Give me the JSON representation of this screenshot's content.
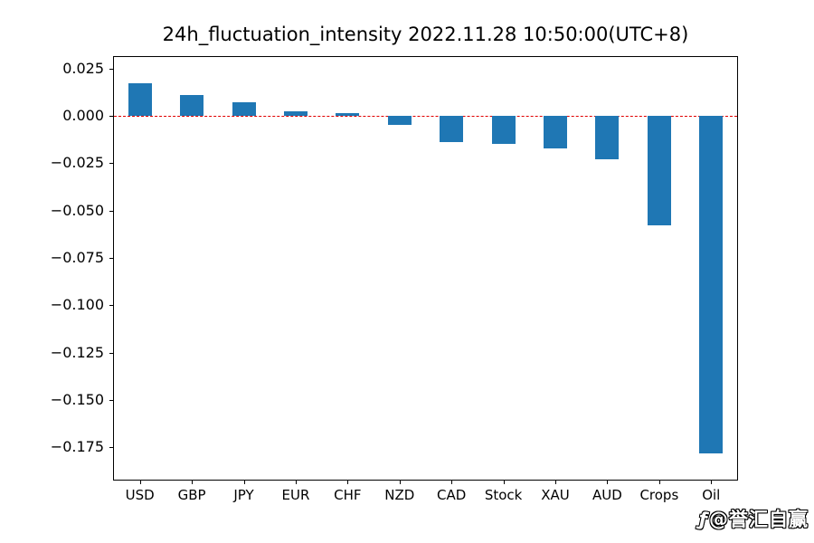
{
  "title": "24h_fluctuation_intensity 2022.11.28 10:50:00(UTC+8)",
  "watermark": {
    "logo": "ƒ",
    "text": "@誉汇自赢"
  },
  "colors": {
    "bar": "#1f77b4",
    "zero_line": "#e00000",
    "axis": "#000000",
    "background": "#ffffff"
  },
  "chart_data": {
    "type": "bar",
    "title": "24h_fluctuation_intensity 2022.11.28 10:50:00(UTC+8)",
    "categories": [
      "USD",
      "GBP",
      "JPY",
      "EUR",
      "CHF",
      "NZD",
      "CAD",
      "Stock",
      "XAU",
      "AUD",
      "Crops",
      "Oil"
    ],
    "values": [
      0.017,
      0.011,
      0.007,
      0.0025,
      0.0015,
      -0.005,
      -0.014,
      -0.015,
      -0.017,
      -0.023,
      -0.058,
      -0.178
    ],
    "xlabel": "",
    "ylabel": "",
    "ylim": [
      -0.192,
      0.031
    ],
    "yticks": [
      0.025,
      0.0,
      -0.025,
      -0.05,
      -0.075,
      -0.1,
      -0.125,
      -0.15,
      -0.175
    ],
    "grid": false,
    "legend": "none",
    "zero_line": {
      "y": 0,
      "style": "dashed",
      "color": "#e00000"
    },
    "bar_color": "#1f77b4"
  }
}
